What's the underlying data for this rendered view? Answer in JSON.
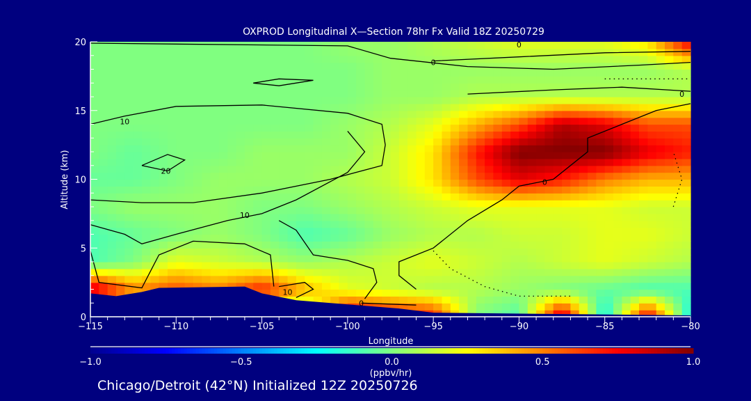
{
  "chart_data": {
    "type": "heatmap",
    "title": "OXPROD Longitudinal X—Section 78hr  Fx Valid 18Z 20250729",
    "xlabel": "Longitude",
    "ylabel": "Altitude (km)",
    "xlim": [
      -115,
      -80
    ],
    "ylim": [
      0,
      20
    ],
    "xticks": [
      -115,
      -110,
      -105,
      -100,
      -95,
      -90,
      -85,
      -80
    ],
    "xtick_labels": [
      "−115",
      "−110",
      "−105",
      "−100",
      "−95",
      "−90",
      "−85",
      "−80"
    ],
    "yticks": [
      0,
      5,
      10,
      15,
      20
    ],
    "ytick_labels": [
      "0",
      "5",
      "10",
      "15",
      "20"
    ],
    "colorbar": {
      "label": "(ppbv/hr)",
      "range": [
        -1.0,
        1.0
      ],
      "ticks": [
        -1.0,
        -0.5,
        0.0,
        0.5,
        1.0
      ],
      "tick_labels": [
        "−1.0",
        "−0.5",
        "0.0",
        "0.5",
        "1.0"
      ],
      "colors": [
        "#00008f",
        "#0000ff",
        "#0080ff",
        "#00ffff",
        "#80ff80",
        "#ffff00",
        "#ff8000",
        "#ff0000",
        "#800000"
      ]
    },
    "grid": {
      "lons": [
        -115,
        -112.5,
        -110,
        -107.5,
        -105,
        -102.5,
        -100,
        -97.5,
        -95,
        -92.5,
        -90,
        -87.5,
        -85,
        -82.5,
        -80
      ],
      "alts": [
        0,
        2,
        4,
        6,
        8,
        10,
        12,
        14,
        16,
        18,
        20
      ],
      "values": [
        [
          -0.1,
          -0.1,
          -0.1,
          -0.1,
          -0.1,
          -0.1,
          0.9,
          0.8,
          0.7,
          0.0,
          -0.1,
          0.9,
          -0.25,
          0.8,
          -0.25
        ],
        [
          0.9,
          0.5,
          0.6,
          0.5,
          0.7,
          0.4,
          0.2,
          0.15,
          0.1,
          0.1,
          0.05,
          0.0,
          -0.05,
          -0.1,
          -0.1
        ],
        [
          -0.1,
          0.0,
          0.2,
          0.15,
          0.1,
          0.05,
          0.1,
          0.15,
          0.2,
          0.15,
          0.1,
          0.15,
          0.2,
          0.15,
          0.1
        ],
        [
          -0.1,
          -0.05,
          0.0,
          0.05,
          0.0,
          -0.1,
          -0.05,
          0.05,
          0.1,
          0.1,
          0.15,
          0.15,
          0.2,
          0.2,
          0.15
        ],
        [
          0.0,
          0.05,
          0.05,
          0.05,
          0.0,
          0.0,
          0.05,
          0.1,
          0.15,
          0.2,
          0.2,
          0.2,
          0.2,
          0.15,
          0.15
        ],
        [
          -0.05,
          -0.05,
          0.0,
          0.05,
          0.05,
          0.05,
          0.1,
          0.15,
          0.3,
          0.6,
          0.8,
          0.7,
          0.5,
          0.4,
          0.4
        ],
        [
          0.0,
          -0.05,
          0.0,
          0.0,
          0.05,
          0.05,
          0.05,
          0.15,
          0.3,
          0.7,
          1.0,
          1.0,
          1.0,
          0.8,
          0.7
        ],
        [
          0.0,
          0.0,
          0.0,
          0.0,
          0.0,
          0.0,
          0.05,
          0.1,
          0.2,
          0.4,
          0.6,
          0.9,
          0.8,
          0.6,
          0.6
        ],
        [
          0.0,
          0.0,
          0.0,
          0.0,
          0.0,
          0.0,
          0.0,
          0.05,
          0.05,
          0.1,
          0.1,
          0.1,
          0.1,
          0.1,
          0.1
        ],
        [
          0.0,
          0.0,
          0.0,
          0.0,
          0.0,
          0.0,
          0.0,
          0.05,
          0.05,
          0.05,
          0.05,
          0.05,
          0.05,
          0.05,
          0.1
        ],
        [
          0.0,
          0.0,
          0.0,
          0.0,
          0.0,
          0.0,
          0.05,
          0.05,
          0.1,
          0.15,
          0.2,
          0.2,
          0.2,
          0.3,
          0.8
        ]
      ]
    },
    "terrain": [
      [
        -115,
        1.7
      ],
      [
        -113.5,
        1.5
      ],
      [
        -112,
        1.8
      ],
      [
        -111,
        2.1
      ],
      [
        -106,
        2.2
      ],
      [
        -105,
        1.7
      ],
      [
        -103,
        1.2
      ],
      [
        -100,
        0.9
      ],
      [
        -97,
        0.6
      ],
      [
        -95,
        0.3
      ],
      [
        -80,
        0.1
      ]
    ],
    "contours": [
      {
        "label": "10",
        "dotted": false,
        "label_at": [
          -113,
          14.2
        ],
        "points": [
          [
            -115,
            14
          ],
          [
            -113,
            14.6
          ],
          [
            -110,
            15.3
          ],
          [
            -105,
            15.4
          ],
          [
            -100,
            14.8
          ],
          [
            -98,
            14
          ],
          [
            -97.8,
            12.5
          ],
          [
            -98,
            11
          ],
          [
            -101,
            10
          ],
          [
            -105,
            9
          ],
          [
            -109,
            8.3
          ],
          [
            -112,
            8.3
          ],
          [
            -115,
            8.5
          ]
        ]
      },
      {
        "label": "20",
        "dotted": false,
        "label_at": [
          -110.6,
          10.6
        ],
        "points": [
          [
            -112,
            11
          ],
          [
            -110.5,
            11.8
          ],
          [
            -109.5,
            11.4
          ],
          [
            -110.5,
            10.6
          ],
          [
            -112,
            11
          ]
        ]
      },
      {
        "label": "10",
        "dotted": false,
        "label_at": [
          -106,
          7.4
        ],
        "points": [
          [
            -115,
            6.7
          ],
          [
            -113,
            6
          ],
          [
            -112,
            5.3
          ],
          [
            -110,
            6
          ],
          [
            -107,
            7
          ],
          [
            -105,
            7.5
          ],
          [
            -103,
            8.5
          ],
          [
            -100,
            10.5
          ],
          [
            -99,
            12
          ],
          [
            -100,
            13.5
          ]
        ]
      },
      {
        "label": "",
        "dotted": false,
        "label_at": null,
        "points": [
          [
            -115,
            4.8
          ],
          [
            -114.5,
            2.5
          ],
          [
            -112,
            2.1
          ],
          [
            -111,
            4.5
          ],
          [
            -109,
            5.5
          ],
          [
            -106,
            5.3
          ],
          [
            -104.5,
            4.5
          ],
          [
            -104.3,
            2.2
          ]
        ]
      },
      {
        "label": "10",
        "dotted": false,
        "label_at": [
          -103.5,
          1.8
        ],
        "points": [
          [
            -104,
            2.2
          ],
          [
            -102.5,
            2.5
          ],
          [
            -102,
            2.0
          ],
          [
            -103,
            1.4
          ]
        ]
      },
      {
        "label": "",
        "dotted": false,
        "label_at": null,
        "points": [
          [
            -104,
            7
          ],
          [
            -103,
            6.3
          ],
          [
            -102,
            4.5
          ],
          [
            -100,
            4.1
          ],
          [
            -98.5,
            3.5
          ],
          [
            -98.3,
            2.5
          ],
          [
            -99,
            1.3
          ]
        ]
      },
      {
        "label": "0",
        "dotted": false,
        "label_at": [
          -99.2,
          1.0
        ],
        "points": [
          [
            -99.2,
            1.0
          ],
          [
            -96,
            0.85
          ]
        ]
      },
      {
        "label": "0",
        "dotted": false,
        "label_at": [
          -90,
          19.8
        ],
        "points": [
          [
            -115,
            19.9
          ],
          [
            -100,
            19.7
          ],
          [
            -97.5,
            18.8
          ],
          [
            -93,
            18.2
          ],
          [
            -88,
            18.0
          ],
          [
            -83,
            18.3
          ],
          [
            -80,
            18.5
          ]
        ]
      },
      {
        "label": "0",
        "dotted": false,
        "label_at": [
          -95,
          18.5
        ],
        "points": [
          [
            -95,
            18.6
          ],
          [
            -90,
            18.9
          ],
          [
            -85,
            19.2
          ],
          [
            -80,
            19.3
          ]
        ]
      },
      {
        "label": "",
        "dotted": false,
        "label_at": null,
        "points": [
          [
            -105.5,
            17.0
          ],
          [
            -104,
            17.3
          ],
          [
            -102,
            17.2
          ],
          [
            -104,
            16.8
          ],
          [
            -105.5,
            17.0
          ]
        ]
      },
      {
        "label": "0",
        "dotted": false,
        "label_at": [
          -80.5,
          16.2
        ],
        "points": [
          [
            -93,
            16.2
          ],
          [
            -88,
            16.5
          ],
          [
            -84,
            16.7
          ],
          [
            -80,
            16.4
          ]
        ]
      },
      {
        "label": "0",
        "dotted": false,
        "label_at": [
          -88.5,
          9.8
        ],
        "points": [
          [
            -96,
            2
          ],
          [
            -97,
            3
          ],
          [
            -97,
            4
          ],
          [
            -95,
            5
          ],
          [
            -93,
            7
          ],
          [
            -91,
            8.5
          ],
          [
            -90,
            9.5
          ],
          [
            -88,
            10
          ],
          [
            -86,
            12
          ],
          [
            -86,
            13
          ],
          [
            -84,
            14
          ],
          [
            -82,
            15
          ],
          [
            -80,
            15.5
          ]
        ]
      },
      {
        "label": "",
        "dotted": true,
        "label_at": null,
        "points": [
          [
            -95,
            4.8
          ],
          [
            -94,
            3.5
          ],
          [
            -92,
            2.2
          ],
          [
            -90,
            1.5
          ],
          [
            -87,
            1.5
          ]
        ]
      },
      {
        "label": "",
        "dotted": true,
        "label_at": null,
        "points": [
          [
            -81,
            8
          ],
          [
            -80.5,
            10
          ],
          [
            -81,
            12
          ]
        ]
      },
      {
        "label": "",
        "dotted": true,
        "label_at": null,
        "points": [
          [
            -85,
            17.3
          ],
          [
            -80,
            17.3
          ]
        ]
      }
    ]
  },
  "footer": "Chicago/Detroit (42°N) Initialized 12Z 20250726"
}
